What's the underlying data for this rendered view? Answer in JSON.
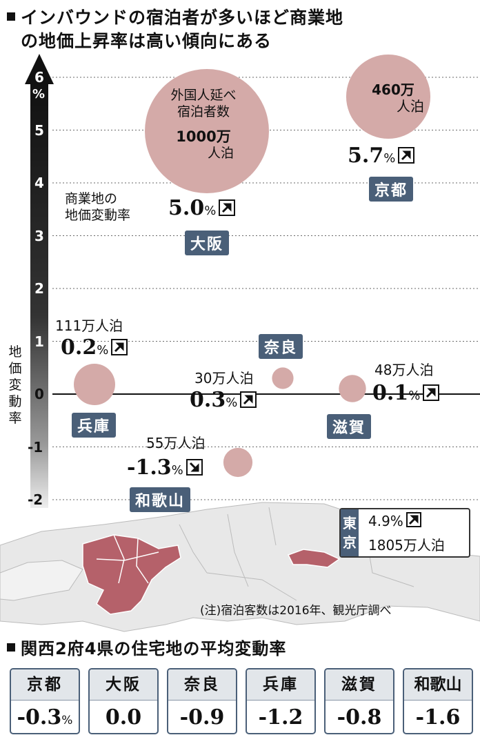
{
  "title_line1": "インバウンドの宿泊者が多いほど商業地",
  "title_line2": "の地価上昇率は高い傾向にある",
  "y_axis_label": "地価変動率",
  "bubble_size_legend": {
    "line1": "外国人延べ",
    "line2": "宿泊者数",
    "value": "1000万",
    "unit": "人泊"
  },
  "rate_legend": {
    "line1": "商業地の",
    "line2": "地価変動率"
  },
  "source_note": "(注)宿泊客数は2016年、観光庁調べ",
  "tokyo": {
    "name": "東京",
    "rate": "4.9%",
    "stays": "1805万人泊",
    "trend": "up"
  },
  "residential_title": "関西2府4県の住宅地の平均変動率",
  "colors": {
    "bubble": "#d4aaa8",
    "region_tag": "#4a5f78",
    "map_highlight": "#b5616a",
    "map_land": "#e8e8e8"
  },
  "chart_data": [
    {
      "type": "scatter",
      "title": "",
      "xlabel": "",
      "ylabel": "地価変動率",
      "y_unit": "%",
      "ylim": [
        -2,
        6.5
      ],
      "y_ticks": [
        "6",
        "5",
        "4",
        "3",
        "2",
        "1",
        "0",
        "-1",
        "-2"
      ],
      "grid": true,
      "points": [
        {
          "region": "大阪",
          "rate": 5.0,
          "rate_label": "5.0",
          "stays": 1000,
          "stays_label": "",
          "trend": "up"
        },
        {
          "region": "京都",
          "rate": 5.7,
          "rate_label": "5.7",
          "stays": 460,
          "stays_label": "460万人泊",
          "trend": "up"
        },
        {
          "region": "兵庫",
          "rate": 0.2,
          "rate_label": "0.2",
          "stays": 111,
          "stays_label": "111万人泊",
          "trend": "up"
        },
        {
          "region": "奈良",
          "rate": 0.3,
          "rate_label": "0.3",
          "stays": 30,
          "stays_label": "30万人泊",
          "trend": "up"
        },
        {
          "region": "滋賀",
          "rate": 0.1,
          "rate_label": "0.1",
          "stays": 48,
          "stays_label": "48万人泊",
          "trend": "up"
        },
        {
          "region": "和歌山",
          "rate": -1.3,
          "rate_label": "-1.3",
          "stays": 55,
          "stays_label": "55万人泊",
          "trend": "down"
        }
      ]
    },
    {
      "type": "table",
      "title": "関西2府4県の住宅地の平均変動率",
      "columns": [
        "京都",
        "大阪",
        "奈良",
        "兵庫",
        "滋賀",
        "和歌山"
      ],
      "values": [
        -0.3,
        0.0,
        -0.9,
        -1.2,
        -0.8,
        -1.6
      ],
      "labels": [
        "-0.3",
        "0.0",
        "-0.9",
        "-1.2",
        "-0.8",
        "-1.6"
      ],
      "units": [
        "%",
        "",
        "",
        "",
        "",
        ""
      ]
    }
  ]
}
